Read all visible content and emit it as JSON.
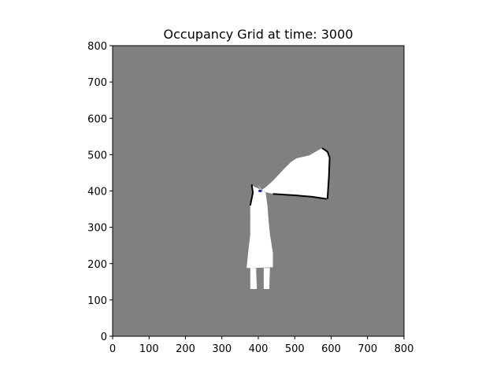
{
  "chart_data": {
    "type": "heatmap",
    "title": "Occupancy Grid at time: 3000",
    "xlabel": "",
    "ylabel": "",
    "xlim": [
      0,
      800
    ],
    "ylim": [
      0,
      800
    ],
    "xticks": [
      0,
      100,
      200,
      300,
      400,
      500,
      600,
      700,
      800
    ],
    "yticks": [
      0,
      100,
      200,
      300,
      400,
      500,
      600,
      700,
      800
    ],
    "grid": false,
    "legend": "none",
    "colors": {
      "unknown": "#808080",
      "free": "#ffffff",
      "occupied": "#000000",
      "robot": "#2020a0"
    },
    "free_regions": [
      {
        "name": "fan-region",
        "polygon": [
          [
            398,
            418
          ],
          [
            408,
            402
          ],
          [
            420,
            410
          ],
          [
            440,
            428
          ],
          [
            470,
            460
          ],
          [
            490,
            480
          ],
          [
            505,
            490
          ],
          [
            540,
            498
          ],
          [
            575,
            518
          ],
          [
            592,
            508
          ],
          [
            598,
            492
          ],
          [
            592,
            440
          ],
          [
            588,
            378
          ],
          [
            548,
            384
          ],
          [
            500,
            388
          ],
          [
            440,
            392
          ],
          [
            415,
            398
          ],
          [
            412,
            400
          ]
        ]
      },
      {
        "name": "corridor-region",
        "polygon": [
          [
            382,
            418
          ],
          [
            388,
            412
          ],
          [
            398,
            408
          ],
          [
            408,
            402
          ],
          [
            415,
            398
          ],
          [
            420,
            396
          ],
          [
            425,
            360
          ],
          [
            428,
            320
          ],
          [
            432,
            280
          ],
          [
            440,
            230
          ],
          [
            440,
            190
          ],
          [
            388,
            188
          ],
          [
            380,
            188
          ],
          [
            368,
            188
          ],
          [
            372,
            230
          ],
          [
            378,
            280
          ],
          [
            378,
            320
          ],
          [
            378,
            360
          ],
          [
            385,
            395
          ]
        ]
      },
      {
        "name": "left-leg",
        "polygon": [
          [
            378,
            188
          ],
          [
            394,
            188
          ],
          [
            396,
            130
          ],
          [
            378,
            130
          ]
        ]
      },
      {
        "name": "right-leg",
        "polygon": [
          [
            415,
            188
          ],
          [
            432,
            188
          ],
          [
            430,
            130
          ],
          [
            415,
            130
          ]
        ]
      }
    ],
    "occupied_segments": [
      {
        "name": "fan-right-wall",
        "points": [
          [
            575,
            518
          ],
          [
            590,
            508
          ],
          [
            596,
            492
          ],
          [
            594,
            440
          ],
          [
            590,
            378
          ]
        ]
      },
      {
        "name": "fan-bottom-edge",
        "points": [
          [
            440,
            392
          ],
          [
            500,
            388
          ],
          [
            548,
            384
          ],
          [
            588,
            378
          ]
        ]
      },
      {
        "name": "corridor-left-wall",
        "points": [
          [
            382,
            418
          ],
          [
            385,
            395
          ],
          [
            378,
            360
          ]
        ]
      }
    ],
    "robot": {
      "x": 405,
      "y": 400
    }
  }
}
